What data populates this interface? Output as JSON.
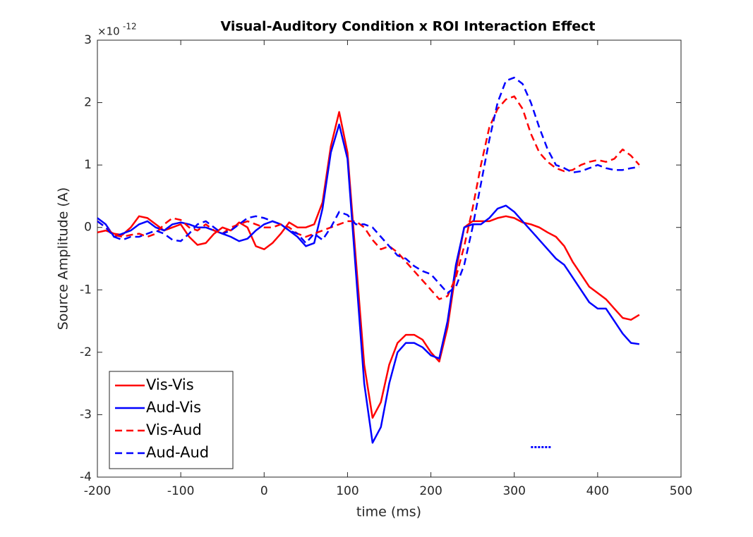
{
  "chart_data": {
    "type": "line",
    "title": "Visual-Auditory Condition x ROI Interaction Effect",
    "x_label": "time (ms)",
    "y_label": "Source Amplitude (A)",
    "y_multiplier_base": "×10",
    "y_multiplier_exponent": "-12",
    "xlim": [
      -200,
      500
    ],
    "xticks": [
      -200,
      -100,
      0,
      100,
      200,
      300,
      400,
      500
    ],
    "ylim": [
      -4,
      3
    ],
    "yticks": [
      -4,
      -3,
      -2,
      -1,
      0,
      1,
      2,
      3
    ],
    "grid": false,
    "legend": "lower left",
    "x": [
      -200,
      -190,
      -180,
      -170,
      -160,
      -150,
      -140,
      -130,
      -120,
      -110,
      -100,
      -90,
      -80,
      -70,
      -60,
      -50,
      -40,
      -30,
      -20,
      -10,
      0,
      10,
      20,
      30,
      40,
      50,
      60,
      70,
      80,
      90,
      100,
      110,
      120,
      130,
      140,
      150,
      160,
      170,
      180,
      190,
      200,
      210,
      220,
      230,
      240,
      250,
      260,
      270,
      280,
      290,
      300,
      310,
      320,
      330,
      340,
      350,
      360,
      370,
      380,
      390,
      400,
      410,
      420,
      430,
      440,
      450
    ],
    "series": [
      {
        "name": "Vis-Vis",
        "color": "#ff0000",
        "dash": "solid",
        "values": [
          -0.08,
          -0.05,
          -0.1,
          -0.12,
          0.0,
          0.18,
          0.15,
          0.05,
          -0.05,
          0.0,
          0.05,
          -0.15,
          -0.28,
          -0.25,
          -0.1,
          0.0,
          -0.05,
          0.08,
          0.0,
          -0.3,
          -0.35,
          -0.25,
          -0.1,
          0.08,
          0.0,
          0.0,
          0.05,
          0.4,
          1.3,
          1.85,
          1.2,
          -0.5,
          -2.2,
          -3.05,
          -2.8,
          -2.2,
          -1.85,
          -1.72,
          -1.72,
          -1.8,
          -2.0,
          -2.15,
          -1.6,
          -0.7,
          0.0,
          0.1,
          0.1,
          0.1,
          0.15,
          0.18,
          0.15,
          0.08,
          0.05,
          0.0,
          -0.08,
          -0.15,
          -0.3,
          -0.55,
          -0.75,
          -0.95,
          -1.05,
          -1.15,
          -1.3,
          -1.45,
          -1.48,
          -1.4
        ]
      },
      {
        "name": "Aud-Vis",
        "color": "#0000ff",
        "dash": "solid",
        "values": [
          0.15,
          0.05,
          -0.15,
          -0.1,
          -0.05,
          0.05,
          0.1,
          0.0,
          -0.05,
          0.05,
          0.08,
          0.05,
          0.0,
          0.0,
          -0.05,
          -0.1,
          -0.15,
          -0.22,
          -0.18,
          -0.05,
          0.05,
          0.1,
          0.05,
          -0.05,
          -0.15,
          -0.3,
          -0.25,
          0.3,
          1.2,
          1.65,
          1.1,
          -0.7,
          -2.5,
          -3.45,
          -3.2,
          -2.5,
          -2.0,
          -1.85,
          -1.85,
          -1.92,
          -2.05,
          -2.1,
          -1.5,
          -0.6,
          0.0,
          0.05,
          0.05,
          0.15,
          0.3,
          0.35,
          0.25,
          0.1,
          -0.05,
          -0.2,
          -0.35,
          -0.5,
          -0.6,
          -0.8,
          -1.0,
          -1.2,
          -1.3,
          -1.3,
          -1.5,
          -1.7,
          -1.85,
          -1.87
        ]
      },
      {
        "name": "Vis-Aud",
        "color": "#ff0000",
        "dash": "dashed",
        "values": [
          0.1,
          0.0,
          -0.12,
          -0.15,
          -0.12,
          -0.1,
          -0.15,
          -0.1,
          0.05,
          0.15,
          0.12,
          0.0,
          -0.05,
          0.05,
          -0.05,
          -0.1,
          0.0,
          0.05,
          0.1,
          0.05,
          0.0,
          0.0,
          0.05,
          0.0,
          -0.1,
          -0.15,
          -0.1,
          -0.05,
          0.0,
          0.05,
          0.1,
          0.1,
          0.0,
          -0.2,
          -0.35,
          -0.3,
          -0.4,
          -0.55,
          -0.7,
          -0.85,
          -1.0,
          -1.15,
          -1.1,
          -0.8,
          -0.3,
          0.3,
          1.0,
          1.6,
          1.9,
          2.05,
          2.1,
          1.9,
          1.5,
          1.2,
          1.05,
          0.95,
          0.9,
          0.92,
          1.0,
          1.05,
          1.08,
          1.05,
          1.1,
          1.25,
          1.15,
          1.0
        ]
      },
      {
        "name": "Aud-Aud",
        "color": "#0000ff",
        "dash": "dashed",
        "values": [
          0.1,
          0.0,
          -0.15,
          -0.2,
          -0.15,
          -0.15,
          -0.1,
          -0.05,
          -0.1,
          -0.2,
          -0.22,
          -0.1,
          0.05,
          0.1,
          0.0,
          -0.1,
          -0.05,
          0.05,
          0.15,
          0.18,
          0.15,
          0.1,
          0.05,
          -0.05,
          -0.1,
          -0.25,
          -0.1,
          -0.2,
          0.0,
          0.25,
          0.2,
          0.05,
          0.05,
          0.0,
          -0.15,
          -0.3,
          -0.45,
          -0.5,
          -0.62,
          -0.7,
          -0.75,
          -0.9,
          -1.05,
          -0.95,
          -0.6,
          0.0,
          0.7,
          1.4,
          2.0,
          2.35,
          2.4,
          2.3,
          2.0,
          1.6,
          1.25,
          1.0,
          0.95,
          0.88,
          0.9,
          0.95,
          1.0,
          0.95,
          0.92,
          0.92,
          0.95,
          0.97
        ]
      }
    ],
    "significance": {
      "x": [
        320,
        345
      ],
      "y": -3.52,
      "color": "#0000ff"
    }
  }
}
